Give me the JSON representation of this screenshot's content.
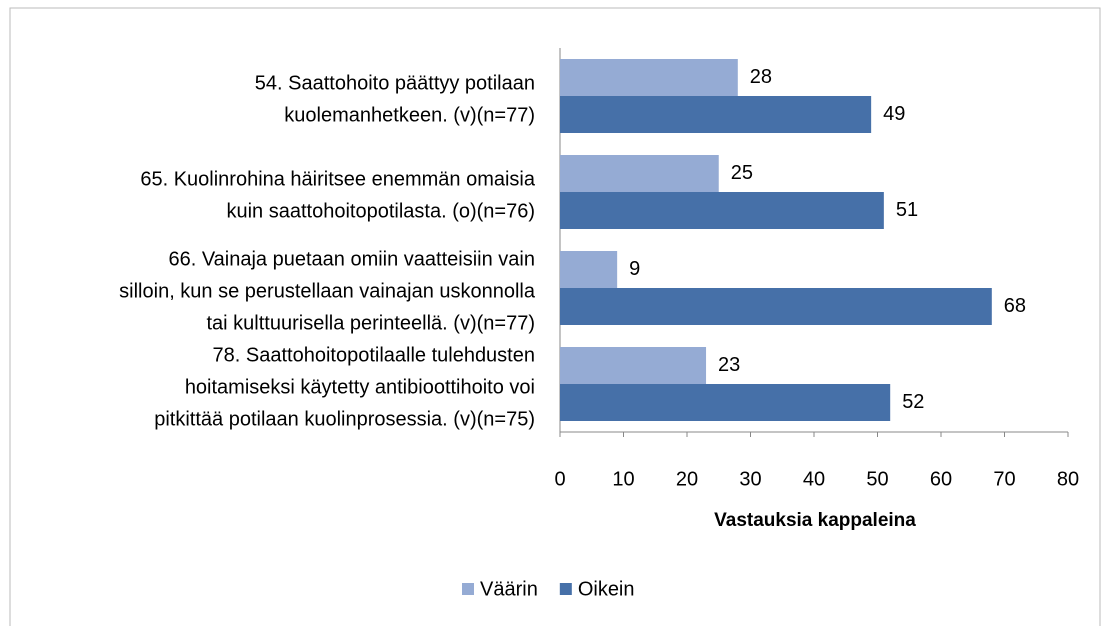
{
  "chart_data": {
    "type": "hbar",
    "categories": [
      [
        "54. Saattohoito päättyy potilaan",
        "kuolemanhetkeen. (v)(n=77)"
      ],
      [
        "65. Kuolinrohina häiritsee enemmän omaisia",
        "kuin saattohoitopotilasta. (o)(n=76)"
      ],
      [
        "66. Vainaja puetaan omiin vaatteisiin vain",
        "silloin, kun se perustellaan vainajan uskonnolla",
        "tai kulttuurisella perinteellä. (v)(n=77)"
      ],
      [
        "78. Saattohoitopotilaalle tulehdusten",
        "hoitamiseksi käytetty antibioottihoito voi",
        "pitkittää potilaan kuolinprosessia. (v)(n=75)"
      ]
    ],
    "series": [
      {
        "name": "Väärin",
        "color": "#95abd4",
        "values": [
          28,
          25,
          9,
          23
        ]
      },
      {
        "name": "Oikein",
        "color": "#4670a8",
        "values": [
          49,
          51,
          68,
          52
        ]
      }
    ],
    "xlim": [
      0,
      80
    ],
    "xticks": [
      0,
      10,
      20,
      30,
      40,
      50,
      60,
      70,
      80
    ],
    "xlabel": "Vastauksia kappaleina",
    "legend": "bottom"
  }
}
